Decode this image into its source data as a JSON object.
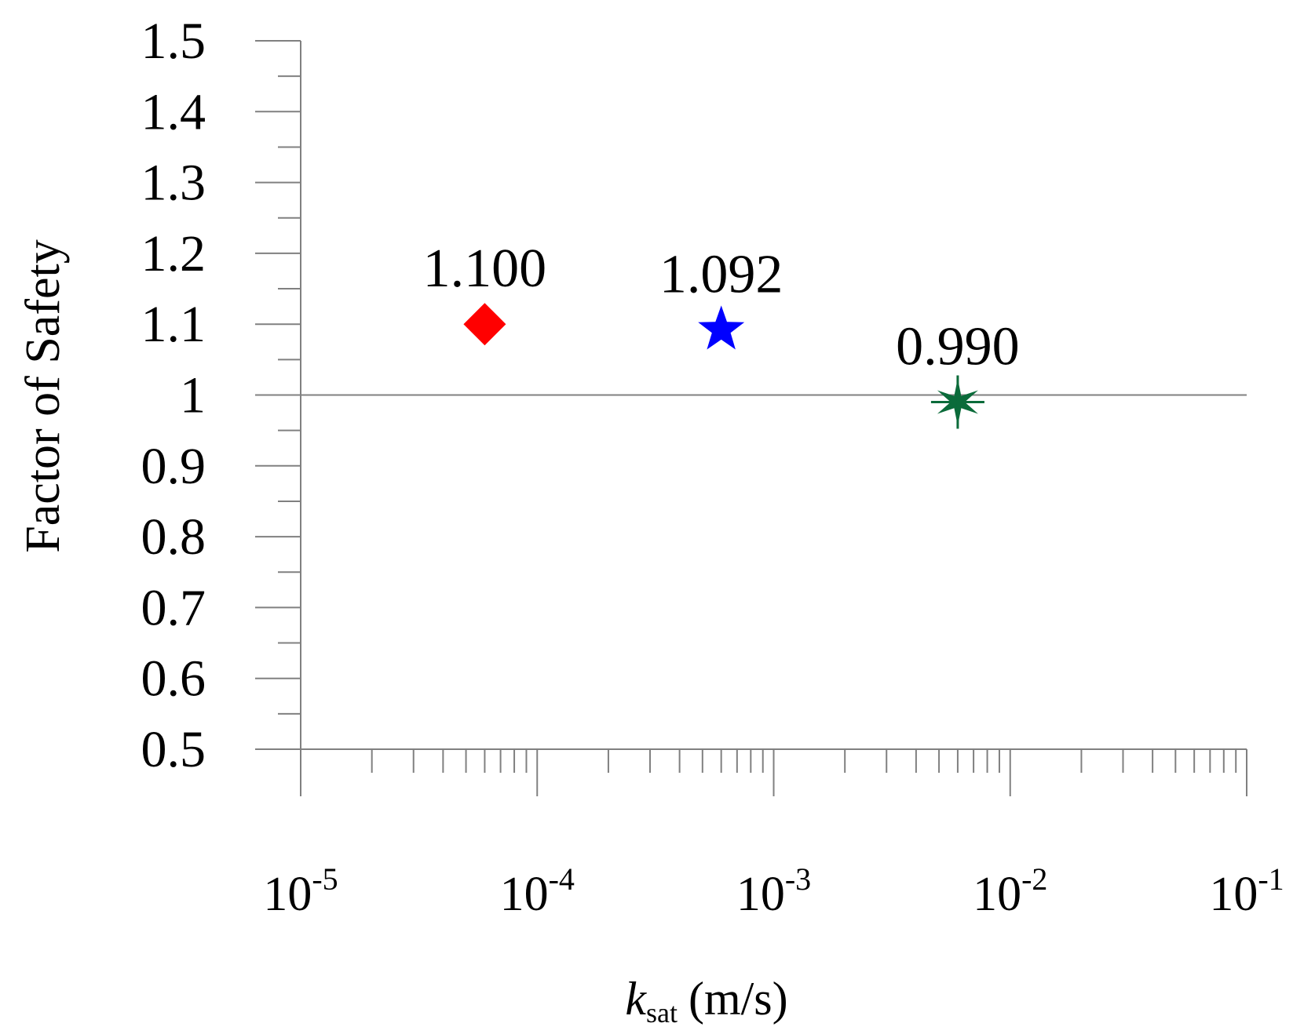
{
  "chart_data": {
    "type": "scatter",
    "xscale": "log",
    "xlim": [
      1e-05,
      0.1
    ],
    "ylim": [
      0.5,
      1.5
    ],
    "x_ticks": [
      {
        "value": 1e-05,
        "base": "10",
        "exp": "-5"
      },
      {
        "value": 0.0001,
        "base": "10",
        "exp": "-4"
      },
      {
        "value": 0.001,
        "base": "10",
        "exp": "-3"
      },
      {
        "value": 0.01,
        "base": "10",
        "exp": "-2"
      },
      {
        "value": 0.1,
        "base": "10",
        "exp": "-1"
      }
    ],
    "y_ticks": [
      {
        "value": 0.5,
        "label": "0.5"
      },
      {
        "value": 0.6,
        "label": "0.6"
      },
      {
        "value": 0.7,
        "label": "0.7"
      },
      {
        "value": 0.8,
        "label": "0.8"
      },
      {
        "value": 0.9,
        "label": "0.9"
      },
      {
        "value": 1.0,
        "label": "1"
      },
      {
        "value": 1.1,
        "label": "1.1"
      },
      {
        "value": 1.2,
        "label": "1.2"
      },
      {
        "value": 1.3,
        "label": "1.3"
      },
      {
        "value": 1.4,
        "label": "1.4"
      },
      {
        "value": 1.5,
        "label": "1.5"
      }
    ],
    "xlabel": {
      "main": "k",
      "sub": "sat",
      "unit": "(m/s)"
    },
    "ylabel": "Factor of Safety",
    "reference_line": {
      "y": 1.0,
      "color": "#808080"
    },
    "points": [
      {
        "x": 6e-05,
        "y": 1.1,
        "label": "1.100",
        "marker": "diamond",
        "color": "#ff0000"
      },
      {
        "x": 0.0006,
        "y": 1.092,
        "label": "1.092",
        "marker": "star",
        "color": "#0000ff"
      },
      {
        "x": 0.006,
        "y": 0.99,
        "label": "0.990",
        "marker": "asterisk",
        "color": "#0b6b3a"
      }
    ],
    "grid": false,
    "legend": "none",
    "axis_color": "#808080"
  }
}
